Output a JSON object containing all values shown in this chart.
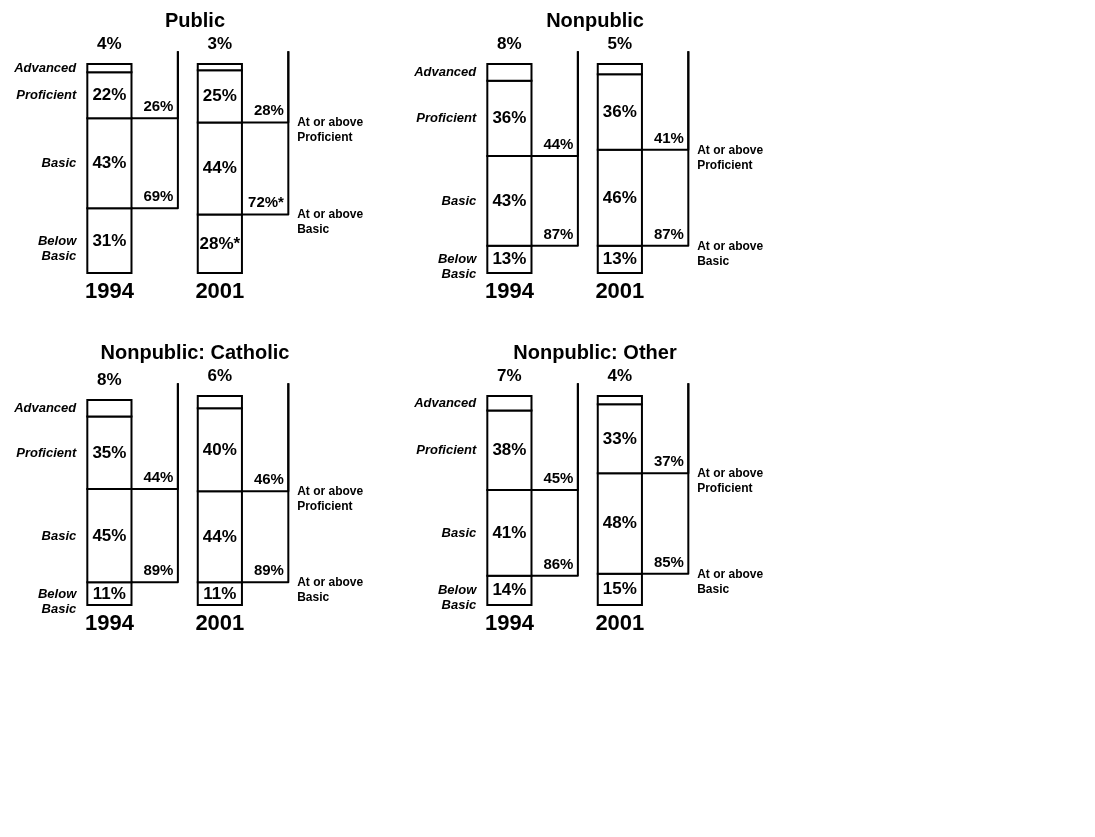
{
  "chart_data": [
    {
      "type": "bar",
      "title": "Public",
      "stacked": true,
      "categories": [
        "1994",
        "2001"
      ],
      "series": [
        {
          "name": "Below Basic",
          "color": "#ffffff",
          "values": [
            31,
            28
          ],
          "value_labels": [
            "31%",
            "28%*"
          ]
        },
        {
          "name": "Basic",
          "color": "#ffffff",
          "values": [
            43,
            44
          ],
          "value_labels": [
            "43%",
            "44%"
          ]
        },
        {
          "name": "Proficient",
          "color": "#ffffff",
          "values": [
            22,
            25
          ],
          "value_labels": [
            "22%",
            "25%"
          ]
        },
        {
          "name": "Advanced",
          "color": "#ffffff",
          "values": [
            4,
            3
          ],
          "value_labels": [
            "4%",
            "3%"
          ]
        }
      ],
      "annotations": [
        {
          "text": "26%",
          "x": "1994",
          "y": 74
        },
        {
          "text": "69%",
          "x": "1994",
          "y": 31
        },
        {
          "text": "28%",
          "x": "2001",
          "y": 72
        },
        {
          "text": "72%*",
          "x": "2001",
          "y": 28
        },
        "At or above Proficient",
        "At or above Basic"
      ]
    },
    {
      "type": "bar",
      "title": "Nonpublic",
      "stacked": true,
      "categories": [
        "1994",
        "2001"
      ],
      "series": [
        {
          "name": "Below Basic",
          "color": "#ffffff",
          "values": [
            13,
            13
          ],
          "value_labels": [
            "13%",
            "13%"
          ]
        },
        {
          "name": "Basic",
          "color": "#ffffff",
          "values": [
            43,
            46
          ],
          "value_labels": [
            "43%",
            "46%"
          ]
        },
        {
          "name": "Proficient",
          "color": "#ffffff",
          "values": [
            36,
            36
          ],
          "value_labels": [
            "36%",
            "36%"
          ]
        },
        {
          "name": "Advanced",
          "color": "#ffffff",
          "values": [
            8,
            5
          ],
          "value_labels": [
            "8%",
            "5%"
          ]
        }
      ],
      "annotations": [
        {
          "text": "44%",
          "x": "1994",
          "y": 56
        },
        {
          "text": "87%",
          "x": "1994",
          "y": 13
        },
        {
          "text": "41%",
          "x": "2001",
          "y": 59
        },
        {
          "text": "87%",
          "x": "2001",
          "y": 13
        },
        "At or above Proficient",
        "At or above Basic"
      ]
    },
    {
      "type": "bar",
      "title": "Nonpublic: Catholic",
      "stacked": true,
      "categories": [
        "1994",
        "2001"
      ],
      "series": [
        {
          "name": "Below Basic",
          "color": "#ffffff",
          "values": [
            11,
            11
          ],
          "value_labels": [
            "11%",
            "11%"
          ]
        },
        {
          "name": "Basic",
          "color": "#ffffff",
          "values": [
            45,
            44
          ],
          "value_labels": [
            "45%",
            "44%"
          ]
        },
        {
          "name": "Proficient",
          "color": "#ffffff",
          "values": [
            35,
            40
          ],
          "value_labels": [
            "35%",
            "40%"
          ]
        },
        {
          "name": "Advanced",
          "color": "#ffffff",
          "values": [
            8,
            6
          ],
          "value_labels": [
            "8%",
            "6%"
          ]
        }
      ],
      "annotations": [
        {
          "text": "44%",
          "x": "1994",
          "y": 56
        },
        {
          "text": "89%",
          "x": "1994",
          "y": 11
        },
        {
          "text": "46%",
          "x": "2001",
          "y": 55
        },
        {
          "text": "89%",
          "x": "2001",
          "y": 11
        },
        "At or above Proficient",
        "At or above Basic"
      ]
    },
    {
      "type": "bar",
      "title": "Nonpublic: Other",
      "stacked": true,
      "categories": [
        "1994",
        "2001"
      ],
      "series": [
        {
          "name": "Below Basic",
          "color": "#ffffff",
          "values": [
            14,
            15
          ],
          "value_labels": [
            "14%",
            "15%"
          ]
        },
        {
          "name": "Basic",
          "color": "#ffffff",
          "values": [
            41,
            48
          ],
          "value_labels": [
            "41%",
            "48%"
          ]
        },
        {
          "name": "Proficient",
          "color": "#ffffff",
          "values": [
            38,
            33
          ],
          "value_labels": [
            "38%",
            "33%"
          ]
        },
        {
          "name": "Advanced",
          "color": "#ffffff",
          "values": [
            7,
            4
          ],
          "value_labels": [
            "7%",
            "4%"
          ]
        }
      ],
      "annotations": [
        {
          "text": "45%",
          "x": "1994",
          "y": 55
        },
        {
          "text": "86%",
          "x": "1994",
          "y": 14
        },
        {
          "text": "37%",
          "x": "2001",
          "y": 63
        },
        {
          "text": "85%",
          "x": "2001",
          "y": 15
        },
        "At or above Proficient",
        "At or above Basic"
      ]
    }
  ]
}
